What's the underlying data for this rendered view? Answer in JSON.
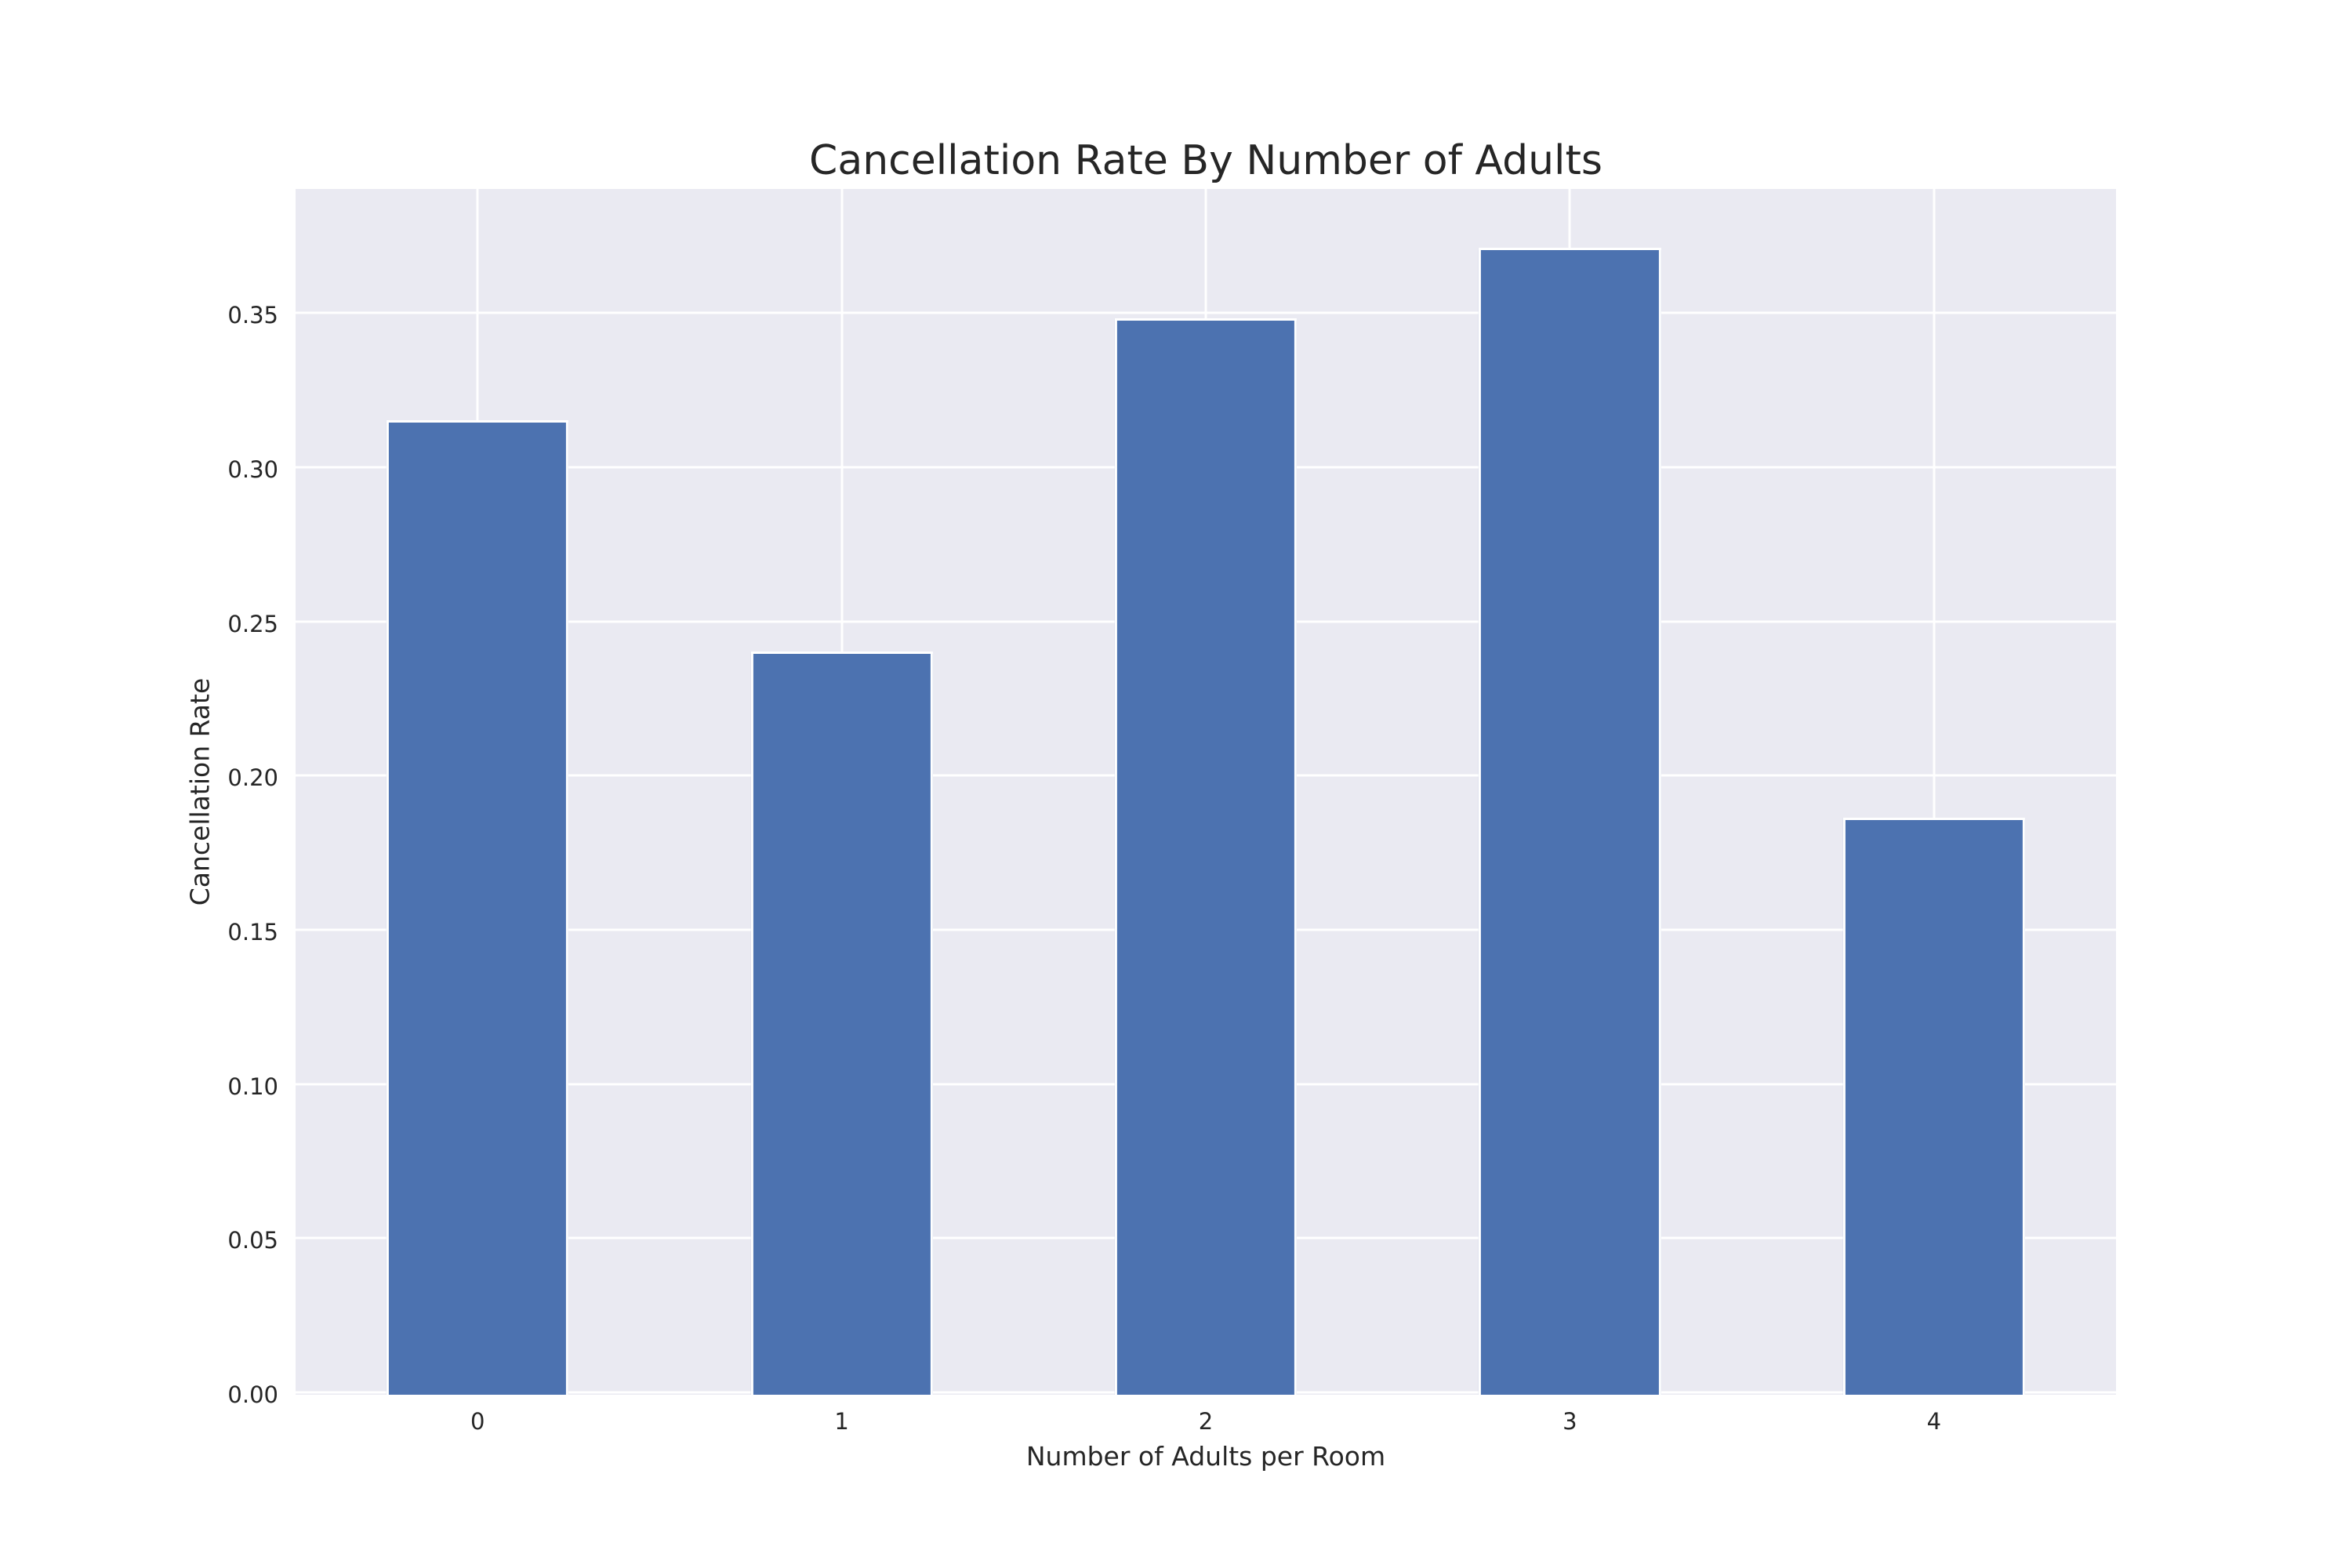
{
  "chart_data": {
    "type": "bar",
    "title": "Cancellation Rate By Number of Adults",
    "xlabel": "Number of Adults per Room",
    "ylabel": "Cancellation Rate",
    "categories": [
      "0",
      "1",
      "2",
      "3",
      "4"
    ],
    "values": [
      0.316,
      0.241,
      0.349,
      0.372,
      0.187
    ],
    "ytick_labels": [
      "0.00",
      "0.05",
      "0.10",
      "0.15",
      "0.20",
      "0.25",
      "0.30",
      "0.35"
    ],
    "ylim": [
      0,
      0.391
    ],
    "grid": "on",
    "legend": "none",
    "colors": {
      "bar_fill": "#4c72b0",
      "bar_edge": "#ffffff",
      "plot_background": "#eaeaf2",
      "gridline": "#ffffff",
      "figure_background": "#ffffff",
      "text": "#262626"
    }
  }
}
